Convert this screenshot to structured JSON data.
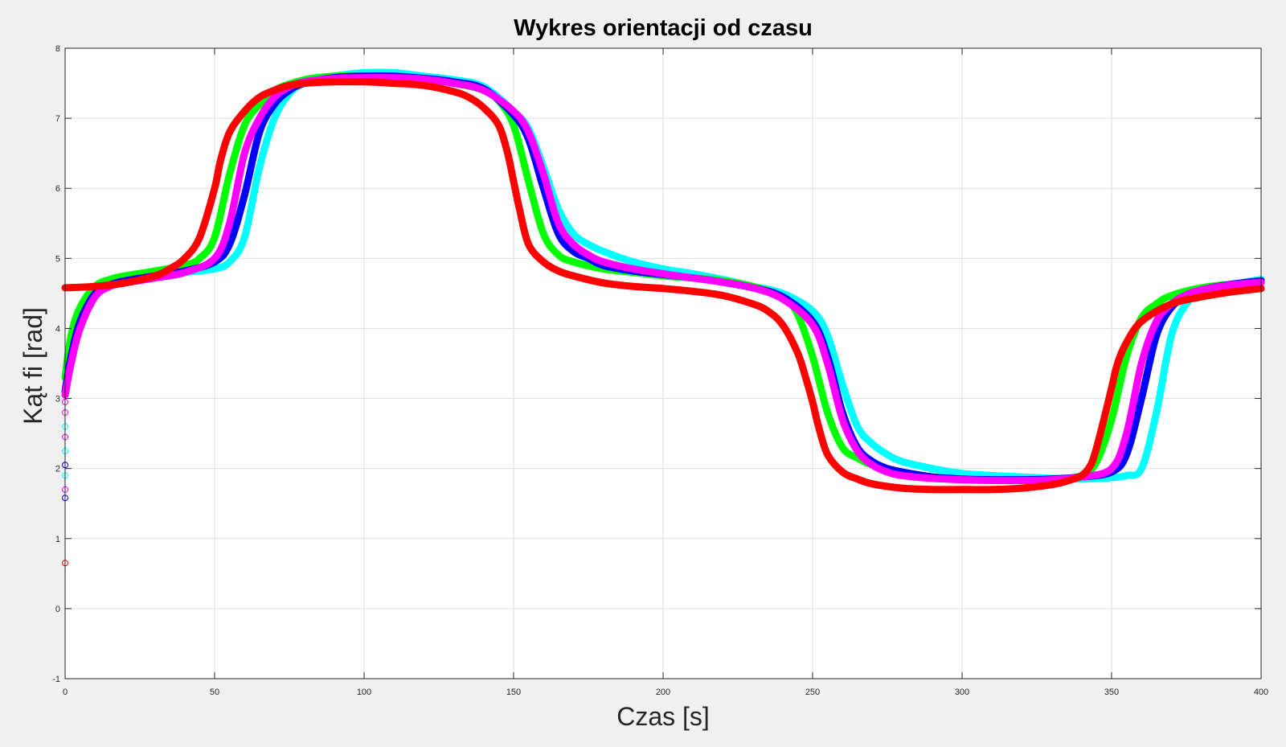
{
  "chart_data": {
    "type": "line",
    "title": "Wykres orientacji od czasu",
    "xlabel": "Czas [s]",
    "ylabel": "Kąt fi [rad]",
    "xlim": [
      0,
      400
    ],
    "ylim": [
      -1,
      8
    ],
    "xticks": [
      "0",
      "50",
      "100",
      "150",
      "200",
      "250",
      "300",
      "350",
      "400"
    ],
    "yticks": [
      "-1",
      "0",
      "1",
      "2",
      "3",
      "4",
      "5",
      "6",
      "7",
      "8"
    ],
    "grid": true,
    "background": "#ffffff",
    "series": [
      {
        "color": "#00ffff",
        "x": [
          0,
          2,
          5,
          10,
          15,
          20,
          30,
          40,
          50,
          55,
          60,
          65,
          70,
          75,
          80,
          90,
          100,
          110,
          120,
          130,
          140,
          150,
          155,
          160,
          165,
          170,
          175,
          180,
          190,
          200,
          210,
          220,
          230,
          240,
          250,
          255,
          260,
          265,
          270,
          275,
          280,
          290,
          300,
          310,
          320,
          330,
          340,
          350,
          355,
          360,
          365,
          370,
          375,
          380,
          390,
          400
        ],
        "y": [
          3.1,
          3.6,
          4.1,
          4.5,
          4.65,
          4.7,
          4.75,
          4.8,
          4.85,
          4.95,
          5.3,
          6.3,
          7.0,
          7.35,
          7.5,
          7.6,
          7.65,
          7.65,
          7.6,
          7.55,
          7.45,
          7.1,
          6.85,
          6.3,
          5.7,
          5.35,
          5.2,
          5.1,
          4.95,
          4.85,
          4.78,
          4.7,
          4.6,
          4.5,
          4.25,
          3.9,
          3.2,
          2.6,
          2.35,
          2.2,
          2.1,
          2.0,
          1.93,
          1.9,
          1.88,
          1.86,
          1.85,
          1.87,
          1.9,
          2.0,
          2.8,
          3.9,
          4.35,
          4.5,
          4.62,
          4.7
        ]
      },
      {
        "color": "#00ff00",
        "x": [
          0,
          2,
          5,
          10,
          15,
          20,
          30,
          40,
          45,
          50,
          55,
          60,
          65,
          70,
          80,
          90,
          100,
          110,
          120,
          130,
          140,
          145,
          150,
          155,
          160,
          165,
          170,
          180,
          190,
          200,
          210,
          220,
          230,
          240,
          245,
          250,
          255,
          260,
          265,
          270,
          280,
          290,
          300,
          310,
          320,
          330,
          340,
          345,
          350,
          355,
          360,
          365,
          370,
          380,
          390,
          400
        ],
        "y": [
          3.3,
          3.9,
          4.3,
          4.6,
          4.7,
          4.75,
          4.82,
          4.9,
          5.0,
          5.3,
          6.2,
          6.9,
          7.2,
          7.4,
          7.55,
          7.6,
          7.6,
          7.58,
          7.55,
          7.5,
          7.4,
          7.25,
          6.9,
          6.1,
          5.35,
          5.05,
          4.95,
          4.85,
          4.8,
          4.75,
          4.72,
          4.68,
          4.6,
          4.45,
          4.2,
          3.6,
          2.8,
          2.3,
          2.15,
          2.05,
          1.95,
          1.88,
          1.84,
          1.83,
          1.83,
          1.84,
          1.9,
          2.1,
          2.7,
          3.6,
          4.15,
          4.35,
          4.47,
          4.58,
          4.63,
          4.65
        ]
      },
      {
        "color": "#0000ff",
        "x": [
          0,
          2,
          5,
          10,
          15,
          20,
          30,
          40,
          50,
          55,
          60,
          65,
          70,
          75,
          80,
          90,
          100,
          110,
          120,
          130,
          140,
          150,
          155,
          160,
          165,
          170,
          175,
          180,
          190,
          200,
          210,
          220,
          230,
          240,
          250,
          255,
          260,
          265,
          270,
          275,
          280,
          290,
          300,
          310,
          320,
          330,
          340,
          350,
          355,
          360,
          365,
          370,
          375,
          380,
          390,
          400
        ],
        "y": [
          3.1,
          3.6,
          4.1,
          4.5,
          4.62,
          4.68,
          4.75,
          4.82,
          4.95,
          5.2,
          5.9,
          6.8,
          7.2,
          7.4,
          7.5,
          7.58,
          7.6,
          7.6,
          7.57,
          7.52,
          7.42,
          7.05,
          6.7,
          6.0,
          5.35,
          5.1,
          5.0,
          4.9,
          4.82,
          4.77,
          4.72,
          4.66,
          4.58,
          4.45,
          4.1,
          3.6,
          2.8,
          2.3,
          2.1,
          2.0,
          1.95,
          1.88,
          1.85,
          1.84,
          1.84,
          1.85,
          1.88,
          1.95,
          2.2,
          3.0,
          3.9,
          4.3,
          4.45,
          4.55,
          4.63,
          4.68
        ]
      },
      {
        "color": "#ff00ff",
        "x": [
          0,
          2,
          5,
          10,
          15,
          20,
          30,
          40,
          50,
          55,
          60,
          65,
          70,
          75,
          80,
          90,
          100,
          110,
          120,
          130,
          140,
          150,
          155,
          160,
          165,
          170,
          175,
          180,
          190,
          200,
          210,
          220,
          230,
          240,
          250,
          255,
          260,
          265,
          270,
          275,
          280,
          290,
          300,
          310,
          320,
          330,
          340,
          350,
          355,
          360,
          365,
          370,
          375,
          380,
          390,
          400
        ],
        "y": [
          3.05,
          3.5,
          4.0,
          4.45,
          4.6,
          4.65,
          4.72,
          4.8,
          5.0,
          5.5,
          6.5,
          7.0,
          7.3,
          7.45,
          7.52,
          7.57,
          7.58,
          7.58,
          7.56,
          7.5,
          7.4,
          7.1,
          6.8,
          6.2,
          5.5,
          5.2,
          5.05,
          4.95,
          4.85,
          4.78,
          4.72,
          4.66,
          4.58,
          4.42,
          4.05,
          3.5,
          2.7,
          2.25,
          2.05,
          1.95,
          1.9,
          1.86,
          1.84,
          1.83,
          1.83,
          1.84,
          1.88,
          2.0,
          2.5,
          3.5,
          4.1,
          4.35,
          4.48,
          4.55,
          4.62,
          4.66
        ]
      },
      {
        "color": "#ff0000",
        "x": [
          0,
          10,
          20,
          30,
          35,
          40,
          45,
          50,
          52,
          55,
          60,
          65,
          70,
          75,
          80,
          90,
          100,
          110,
          120,
          130,
          135,
          140,
          145,
          148,
          150,
          152,
          155,
          160,
          165,
          170,
          180,
          190,
          200,
          210,
          220,
          230,
          235,
          240,
          245,
          248,
          250,
          252,
          255,
          260,
          265,
          270,
          280,
          290,
          300,
          310,
          320,
          330,
          335,
          340,
          343,
          345,
          348,
          350,
          352,
          355,
          360,
          370,
          380,
          390,
          400
        ],
        "y": [
          4.58,
          4.6,
          4.65,
          4.75,
          4.85,
          5.0,
          5.3,
          6.0,
          6.4,
          6.8,
          7.1,
          7.3,
          7.4,
          7.47,
          7.5,
          7.52,
          7.52,
          7.5,
          7.47,
          7.38,
          7.3,
          7.15,
          6.9,
          6.5,
          6.1,
          5.7,
          5.2,
          4.95,
          4.82,
          4.75,
          4.65,
          4.6,
          4.57,
          4.53,
          4.47,
          4.35,
          4.25,
          4.05,
          3.65,
          3.25,
          2.95,
          2.6,
          2.2,
          1.95,
          1.85,
          1.78,
          1.72,
          1.7,
          1.7,
          1.7,
          1.72,
          1.77,
          1.82,
          1.9,
          2.05,
          2.3,
          2.8,
          3.15,
          3.5,
          3.8,
          4.1,
          4.35,
          4.45,
          4.52,
          4.57
        ]
      }
    ],
    "markers": [
      {
        "color": "#ff0000",
        "x": 0,
        "y": 0.65
      },
      {
        "color": "#0000ff",
        "x": 0,
        "y": 1.58
      },
      {
        "color": "#ff00ff",
        "x": 0,
        "y": 1.7
      },
      {
        "color": "#00ffff",
        "x": 0,
        "y": 1.9
      },
      {
        "color": "#0000ff",
        "x": 0,
        "y": 2.05
      },
      {
        "color": "#00ffff",
        "x": 0,
        "y": 2.25
      },
      {
        "color": "#ff00ff",
        "x": 0,
        "y": 2.45
      },
      {
        "color": "#00ffff",
        "x": 0,
        "y": 2.6
      },
      {
        "color": "#ff00ff",
        "x": 0,
        "y": 2.8
      },
      {
        "color": "#ff00ff",
        "x": 0,
        "y": 2.95
      }
    ]
  }
}
